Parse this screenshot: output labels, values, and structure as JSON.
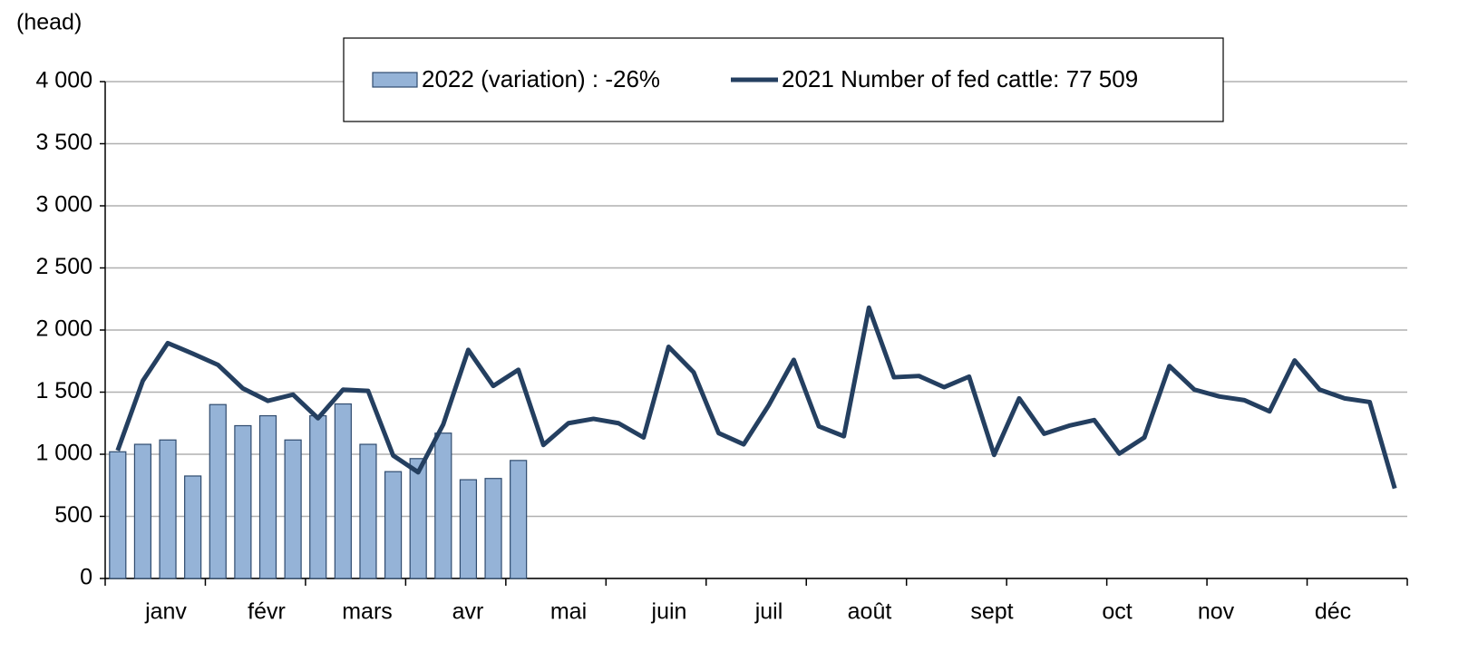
{
  "chart_data": {
    "type": "bar_line",
    "y_label": "(head)",
    "categories": [
      null,
      null,
      null,
      null,
      null,
      null,
      null,
      null,
      null,
      null,
      null,
      null,
      null,
      null,
      null,
      null,
      null,
      null,
      null,
      null,
      null,
      null,
      null,
      null,
      null,
      null,
      null,
      null,
      null,
      null,
      null,
      null,
      null,
      null,
      null,
      null,
      null,
      null,
      null,
      null,
      null,
      null,
      null,
      null,
      null,
      null,
      null,
      null,
      null,
      null,
      null,
      null
    ],
    "month_labels": [
      "janv",
      "févr",
      "mars",
      "avr",
      "mai",
      "juin",
      "juil",
      "août",
      "sept",
      "oct",
      "nov",
      "déc"
    ],
    "series": [
      {
        "name": "2022 (variation) : -26%",
        "type": "bar",
        "color": "#95b3d7",
        "values": [
          1020,
          1080,
          1115,
          825,
          1400,
          1230,
          1310,
          1115,
          1310,
          1405,
          1080,
          860,
          965,
          1170,
          795,
          805,
          950,
          null,
          null,
          null,
          null,
          null,
          null,
          null,
          null,
          null,
          null,
          null,
          null,
          null,
          null,
          null,
          null,
          null,
          null,
          null,
          null,
          null,
          null,
          null,
          null,
          null,
          null,
          null,
          null,
          null,
          null,
          null,
          null,
          null,
          null,
          null
        ]
      },
      {
        "name": "2021 Number of fed cattle: 77 509",
        "type": "line",
        "color": "#243f60",
        "values": [
          1030,
          1590,
          1895,
          1810,
          1720,
          1530,
          1430,
          1480,
          1290,
          1520,
          1510,
          990,
          855,
          1240,
          1840,
          1550,
          1680,
          1075,
          1250,
          1285,
          1250,
          1135,
          1865,
          1660,
          1170,
          1080,
          1395,
          1760,
          1225,
          1145,
          2180,
          1620,
          1630,
          1540,
          1625,
          995,
          1450,
          1165,
          1230,
          1275,
          1005,
          1135,
          1710,
          1520,
          1465,
          1435,
          1345,
          1755,
          1520,
          1450,
          1420,
          725
        ]
      }
    ],
    "ylim": [
      0,
      4000
    ],
    "yticks": [
      0,
      500,
      {
        "value": 1000,
        "label": "1 000"
      },
      {
        "value": 1500,
        "label": "1 500"
      },
      {
        "value": 2000,
        "label": "2 000"
      },
      {
        "value": 2500,
        "label": "2 500"
      },
      {
        "value": 3000,
        "label": "3 000"
      },
      {
        "value": 3500,
        "label": "3 500"
      },
      {
        "value": 4000,
        "label": "4 000"
      }
    ],
    "grid": true
  }
}
